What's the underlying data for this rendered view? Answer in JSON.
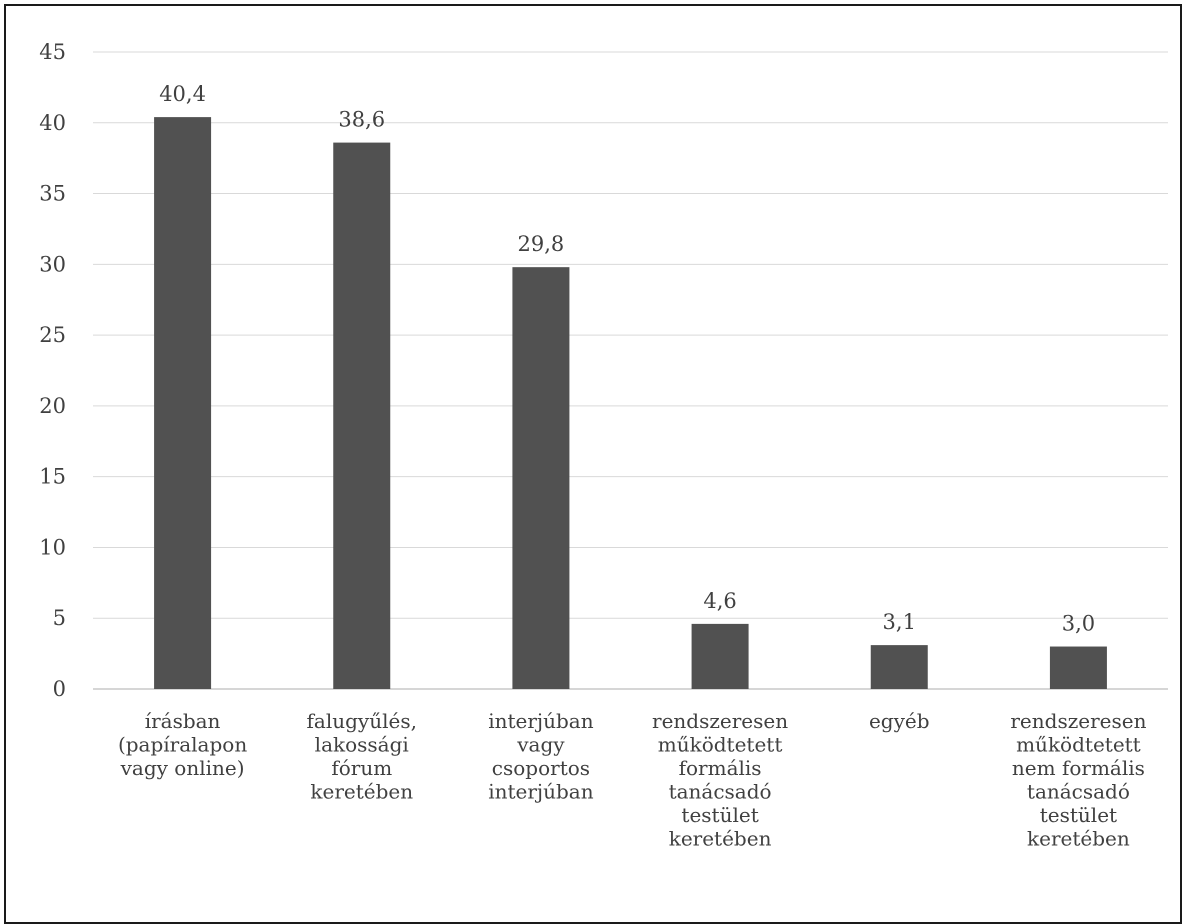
{
  "chart_data": {
    "type": "bar",
    "categories": [
      [
        "írásban",
        "(papíralapon",
        "vagy online)"
      ],
      [
        "falugyűlés,",
        "lakossági",
        "fórum",
        "keretében"
      ],
      [
        "interjúban",
        "vagy",
        "csoportos",
        "interjúban"
      ],
      [
        "rendszeresen",
        "működtetett",
        "formális",
        "tanácsadó",
        "testület",
        "keretében"
      ],
      [
        "egyéb"
      ],
      [
        "rendszeresen",
        "működtetett",
        "nem formális",
        "tanácsadó",
        "testület",
        "keretében"
      ]
    ],
    "values": [
      40.4,
      38.6,
      29.8,
      4.6,
      3.1,
      3.0
    ],
    "data_labels": [
      "40,4",
      "38,6",
      "29,8",
      "4,6",
      "3,1",
      "3,0"
    ],
    "y_ticks": [
      0,
      5,
      10,
      15,
      20,
      25,
      30,
      35,
      40,
      45
    ],
    "ylim": [
      0,
      45
    ],
    "grid": true,
    "legend": "none",
    "colors": {
      "bar": "#515151",
      "grid": "#d9d9d9",
      "text": "#404040"
    },
    "title": "",
    "xlabel": "",
    "ylabel": ""
  }
}
